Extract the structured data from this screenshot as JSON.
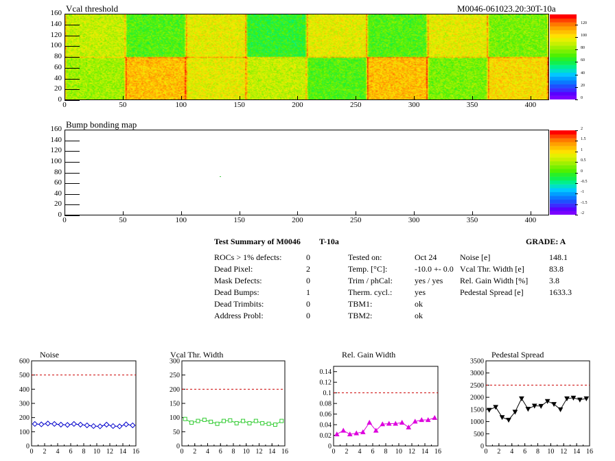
{
  "map1": {
    "title": "Vcal threshold",
    "module_id": "M0046-061023.20:30T-10a",
    "xticks": [
      "0",
      "50",
      "100",
      "150",
      "200",
      "250",
      "300",
      "350",
      "400"
    ],
    "yticks": [
      "0",
      "20",
      "40",
      "60",
      "80",
      "100",
      "120",
      "140",
      "160"
    ],
    "zticks": [
      "0",
      "20",
      "40",
      "60",
      "80",
      "100",
      "120"
    ],
    "palette": [
      "#7b00ff",
      "#5a00ff",
      "#3c2cff",
      "#1e50ff",
      "#0a78ff",
      "#00a0ff",
      "#00c8ff",
      "#00e0c8",
      "#00f08c",
      "#10f050",
      "#28f028",
      "#50f000",
      "#78f000",
      "#a0f000",
      "#c8f000",
      "#e6f000",
      "#ffe000",
      "#ffc000",
      "#ffa000",
      "#ff7800",
      "#ff4000",
      "#ff0000"
    ],
    "xlim": [
      0,
      416
    ],
    "ylim": [
      0,
      160
    ],
    "zlim": [
      0,
      136
    ]
  },
  "map2": {
    "title": "Bump bonding map",
    "xticks": [
      "0",
      "50",
      "100",
      "150",
      "200",
      "250",
      "300",
      "350",
      "400"
    ],
    "yticks": [
      "0",
      "20",
      "40",
      "60",
      "80",
      "100",
      "120",
      "140",
      "160"
    ],
    "zticks": [
      "-2",
      "-1.5",
      "-1",
      "-0.5",
      "0",
      "0.5",
      "1",
      "1.5",
      "2"
    ],
    "palette": [
      "#7b00ff",
      "#5a00ff",
      "#3c2cff",
      "#1e50ff",
      "#0a78ff",
      "#00a0ff",
      "#00c8ff",
      "#00e0c8",
      "#00f08c",
      "#10f050",
      "#28f028",
      "#50f000",
      "#78f000",
      "#a0f000",
      "#c8f000",
      "#e6f000",
      "#ffe000",
      "#ffc000",
      "#ffa000",
      "#ff7800",
      "#ff4000",
      "#ff0000"
    ],
    "xlim": [
      0,
      416
    ],
    "ylim": [
      0,
      160
    ],
    "zlim": [
      -2,
      2
    ],
    "dead_bump": {
      "x": 133,
      "y": 73
    }
  },
  "summary": {
    "heading": "Test Summary of M0046",
    "temp_label": "T-10a",
    "grade_label": "GRADE:  A",
    "col1": [
      {
        "label": "ROCs > 1% defects:",
        "value": "0"
      },
      {
        "label": "Dead Pixel:",
        "value": "2"
      },
      {
        "label": "Mask Defects:",
        "value": "0"
      },
      {
        "label": "Dead Bumps:",
        "value": "1"
      },
      {
        "label": "Dead Trimbits:",
        "value": "0"
      },
      {
        "label": "Address Probl:",
        "value": "0"
      }
    ],
    "col2": [
      {
        "label": "Tested on:",
        "value": "Oct 24"
      },
      {
        "label": "Temp. [°C]:",
        "value": "-10.0 +- 0.0"
      },
      {
        "label": "Trim / phCal:",
        "value": "yes / yes"
      },
      {
        "label": "Therm. cycl.:",
        "value": "yes"
      },
      {
        "label": "TBM1:",
        "value": "ok"
      },
      {
        "label": "TBM2:",
        "value": "ok"
      }
    ],
    "col3": [
      {
        "label": "Noise [e]",
        "value": "148.1"
      },
      {
        "label": "Vcal Thr. Width [e]",
        "value": "83.8"
      },
      {
        "label": "Rel. Gain Width [%]",
        "value": "3.8"
      },
      {
        "label": "Pedestal Spread [e]",
        "value": "1633.3"
      }
    ]
  },
  "chart_data": [
    {
      "type": "line",
      "title": "Noise",
      "x": [
        0,
        1,
        2,
        3,
        4,
        5,
        6,
        7,
        8,
        9,
        10,
        11,
        12,
        13,
        14,
        15
      ],
      "series": [
        {
          "values": [
            155,
            152,
            158,
            155,
            150,
            148,
            155,
            150,
            145,
            140,
            138,
            150,
            140,
            138,
            152,
            145
          ],
          "color": "#0000cc"
        }
      ],
      "xlim": [
        0,
        16
      ],
      "ylim": [
        0,
        600
      ],
      "xticks": [
        "0",
        "2",
        "4",
        "6",
        "8",
        "10",
        "12",
        "14",
        "16"
      ],
      "yticks": [
        "0",
        "100",
        "200",
        "300",
        "400",
        "500",
        "600"
      ],
      "threshold": 500,
      "marker": "diamond-open"
    },
    {
      "type": "line",
      "title": "Vcal Thr. Width",
      "x": [
        0,
        1,
        2,
        3,
        4,
        5,
        6,
        7,
        8,
        9,
        10,
        11,
        12,
        13,
        14,
        15
      ],
      "series": [
        {
          "values": [
            95,
            82,
            88,
            92,
            85,
            78,
            88,
            90,
            80,
            88,
            80,
            88,
            80,
            78,
            75,
            88
          ],
          "color": "#33cc33"
        }
      ],
      "xlim": [
        0,
        16
      ],
      "ylim": [
        0,
        300
      ],
      "xticks": [
        "0",
        "2",
        "4",
        "6",
        "8",
        "10",
        "12",
        "14",
        "16"
      ],
      "yticks": [
        "0",
        "50",
        "100",
        "150",
        "200",
        "250",
        "300"
      ],
      "threshold": 200,
      "marker": "square-open"
    },
    {
      "type": "line",
      "title": "Rel. Gain Width",
      "x": [
        0,
        1,
        2,
        3,
        4,
        5,
        6,
        7,
        8,
        9,
        10,
        11,
        12,
        13,
        14,
        15
      ],
      "series": [
        {
          "values": [
            0.022,
            0.029,
            0.022,
            0.024,
            0.026,
            0.044,
            0.029,
            0.041,
            0.042,
            0.042,
            0.044,
            0.035,
            0.046,
            0.049,
            0.049,
            0.053
          ],
          "color": "#dd00dd"
        }
      ],
      "xlim": [
        0,
        16
      ],
      "ylim": [
        0,
        0.15
      ],
      "xticks": [
        "0",
        "2",
        "4",
        "6",
        "8",
        "10",
        "12",
        "14",
        "16"
      ],
      "yticks": [
        "0",
        "0.02",
        "0.04",
        "0.06",
        "0.08",
        "0.1",
        "0.12",
        "0.14"
      ],
      "threshold": 0.1,
      "marker": "triangle-up"
    },
    {
      "type": "line",
      "title": "Pedestal Spread",
      "x": [
        0,
        1,
        2,
        3,
        4,
        5,
        6,
        7,
        8,
        9,
        10,
        11,
        12,
        13,
        14,
        15
      ],
      "series": [
        {
          "values": [
            1480,
            1600,
            1180,
            1070,
            1400,
            1950,
            1520,
            1650,
            1640,
            1840,
            1720,
            1500,
            1950,
            1980,
            1900,
            1950
          ],
          "color": "#000000"
        }
      ],
      "xlim": [
        0,
        16
      ],
      "ylim": [
        0,
        3500
      ],
      "xticks": [
        "0",
        "2",
        "4",
        "6",
        "8",
        "10",
        "12",
        "14",
        "16"
      ],
      "yticks": [
        "0",
        "500",
        "1000",
        "1500",
        "2000",
        "2500",
        "3000",
        "3500"
      ],
      "threshold": 2500,
      "marker": "triangle-down"
    }
  ]
}
